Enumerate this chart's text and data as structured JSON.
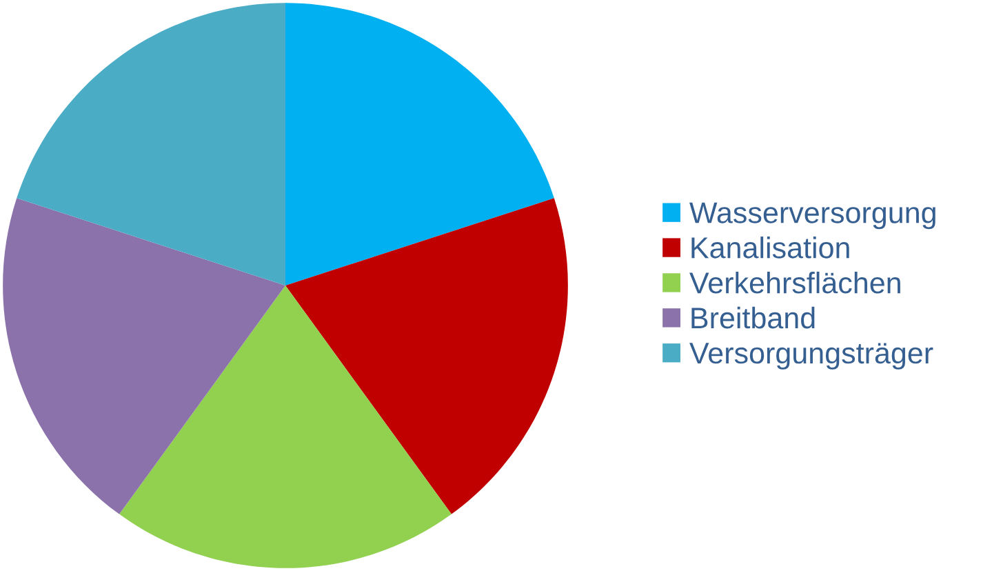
{
  "chart_data": {
    "type": "pie",
    "categories": [
      "Wasserversorgung",
      "Kanalisation",
      "Verkehrsflächen",
      "Breitband",
      "Versorgungsträger"
    ],
    "values": [
      20,
      20,
      20,
      20,
      20
    ],
    "colors": [
      "#00b0f0",
      "#c00000",
      "#92d050",
      "#8b72aa",
      "#4bacc6"
    ],
    "legend": "right"
  }
}
